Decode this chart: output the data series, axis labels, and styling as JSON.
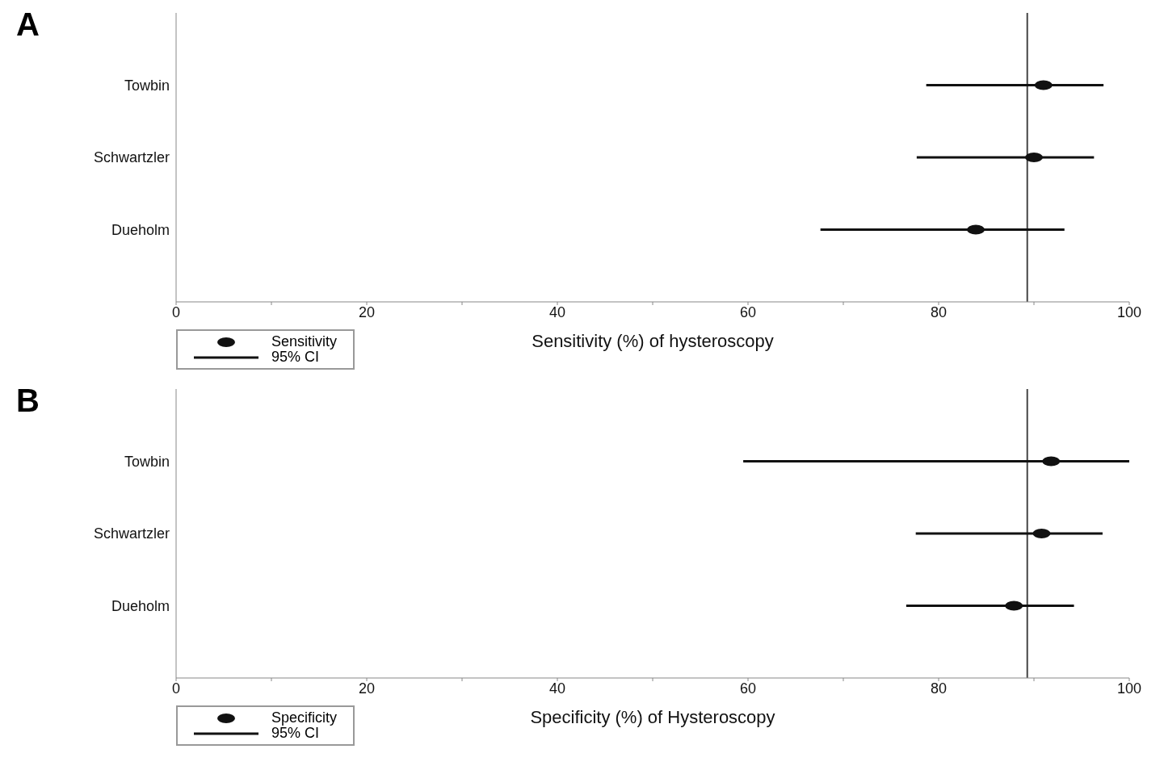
{
  "chart_data": [
    {
      "type": "scatter",
      "orientation": "horizontal",
      "title": "A",
      "xlabel": "Sensitivity (%) of hysteroscopy",
      "categories": [
        "Towbin",
        "Schwartzler",
        "Dueholm"
      ],
      "series": [
        {
          "name": "Sensitivity",
          "color": "#111111",
          "values": [
            91,
            90,
            83.9
          ],
          "errors": [
            [
              78.7,
              97.3
            ],
            [
              77.7,
              96.3
            ],
            [
              67.6,
              93.2
            ]
          ]
        }
      ],
      "xlim": [
        0,
        100
      ],
      "xticks": [
        0,
        {
          "value": 10,
          "label": null
        },
        20,
        {
          "value": 30,
          "label": null
        },
        40,
        {
          "value": 50,
          "label": null
        },
        60,
        {
          "value": 70,
          "label": null
        },
        80,
        {
          "value": 90,
          "label": null
        },
        100
      ],
      "ref_lines": [
        {
          "axis": "x",
          "value": 89.3,
          "color": "#444444"
        }
      ],
      "legend": "bottom left",
      "marker": "circle",
      "grid": false,
      "annotations": [
        "95% CI"
      ]
    },
    {
      "type": "scatter",
      "orientation": "horizontal",
      "title": "B",
      "xlabel": "Specificity (%) of Hysteroscopy",
      "categories": [
        "Towbin",
        "Schwartzler",
        "Dueholm"
      ],
      "series": [
        {
          "name": "Specificity",
          "color": "#111111",
          "values": [
            91.8,
            90.8,
            87.9
          ],
          "errors": [
            [
              59.5,
              100
            ],
            [
              77.6,
              97.2
            ],
            [
              76.6,
              94.2
            ]
          ]
        }
      ],
      "xlim": [
        0,
        100
      ],
      "xticks": [
        0,
        {
          "value": 10,
          "label": null
        },
        20,
        {
          "value": 30,
          "label": null
        },
        40,
        {
          "value": 50,
          "label": null
        },
        60,
        {
          "value": 70,
          "label": null
        },
        80,
        {
          "value": 90,
          "label": null
        },
        100
      ],
      "ref_lines": [
        {
          "axis": "x",
          "value": 89.3,
          "color": "#444444"
        }
      ],
      "legend": "bottom left",
      "marker": "circle",
      "grid": false,
      "annotations": [
        "95% CI"
      ]
    }
  ]
}
